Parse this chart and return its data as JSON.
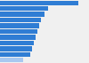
{
  "values": [
    44,
    27,
    25,
    23,
    22,
    21,
    20,
    19,
    18,
    17,
    13
  ],
  "bar_color": "#2f7dd4",
  "last_bar_color": "#a8c8f0",
  "background_color": "#f0f0f0",
  "plot_bg_color": "#f0f0f0",
  "xlim": [
    0,
    50
  ],
  "bar_height": 0.82,
  "grid_color": "#ffffff",
  "grid_linewidth": 0.6
}
